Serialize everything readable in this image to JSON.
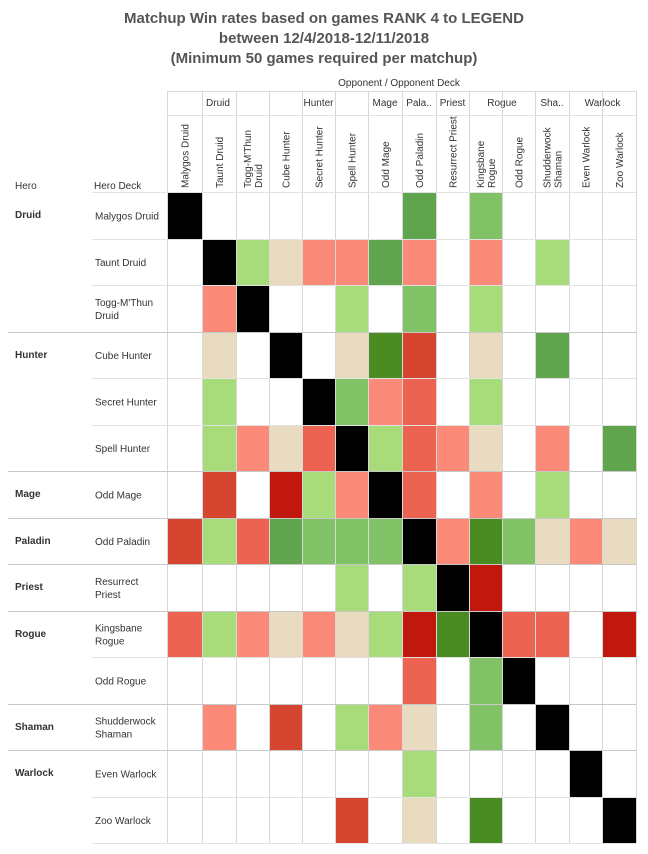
{
  "title": {
    "line1": "Matchup Win rates based on games RANK 4 to LEGEND",
    "line2": "between 12/4/2018-12/11/2018",
    "line3": "(Minimum 50 games required per matchup)"
  },
  "chart_data": {
    "type": "heatmap",
    "column_header": "Opponent  /  Opponent Deck",
    "row_headers": {
      "hero": "Hero",
      "deck": "Hero Deck"
    },
    "column_groups": [
      {
        "label": "Druid",
        "span": 3
      },
      {
        "label": "Hunter",
        "span": 3
      },
      {
        "label": "Mage",
        "span": 1
      },
      {
        "label": "Pala..",
        "span": 1
      },
      {
        "label": "Priest",
        "span": 1
      },
      {
        "label": "Rogue",
        "span": 2
      },
      {
        "label": "Sha..",
        "span": 1
      },
      {
        "label": "Warlock",
        "span": 2
      }
    ],
    "columns": [
      [
        "Malygos Druid"
      ],
      [
        "Taunt Druid"
      ],
      [
        "Togg-M'Thun",
        "Druid"
      ],
      [
        "Cube Hunter"
      ],
      [
        "Secret Hunter"
      ],
      [
        "Spell Hunter"
      ],
      [
        "Odd Mage"
      ],
      [
        "Odd Paladin"
      ],
      [
        "Resurrect Priest"
      ],
      [
        "Kingsbane",
        "Rogue"
      ],
      [
        "Odd Rogue"
      ],
      [
        "Shudderwock",
        "Shaman"
      ],
      [
        "Even Warlock"
      ],
      [
        "Zoo Warlock"
      ]
    ],
    "row_groups": [
      {
        "label": "Druid",
        "span": 3
      },
      {
        "label": "Hunter",
        "span": 3
      },
      {
        "label": "Mage",
        "span": 1
      },
      {
        "label": "Paladin",
        "span": 1
      },
      {
        "label": "Priest",
        "span": 1
      },
      {
        "label": "Rogue",
        "span": 2
      },
      {
        "label": "Shaman",
        "span": 1
      },
      {
        "label": "Warlock",
        "span": 2
      }
    ],
    "rows": [
      [
        "Malygos Druid"
      ],
      [
        "Taunt Druid"
      ],
      [
        "Togg-M'Thun",
        "Druid"
      ],
      [
        "Cube Hunter"
      ],
      [
        "Secret Hunter"
      ],
      [
        "Spell Hunter"
      ],
      [
        "Odd Mage"
      ],
      [
        "Odd Paladin"
      ],
      [
        "Resurrect",
        "Priest"
      ],
      [
        "Kingsbane",
        "Rogue"
      ],
      [
        "Odd Rogue"
      ],
      [
        "Shudderwock",
        "Shaman"
      ],
      [
        "Even Warlock"
      ],
      [
        "Zoo Warlock"
      ]
    ],
    "color_scale": {
      "X": "#000000",
      "R3": "#c0180c",
      "R2": "#d64530",
      "R1": "#ec6451",
      "R0": "#fb8a78",
      "N": "#e8dbbf",
      "G0": "#a8dc7a",
      "G1": "#82c267",
      "G2": "#60a44e",
      "G3": "#4a8c22"
    },
    "cells": [
      [
        "X",
        "",
        "",
        "",
        "",
        "",
        "",
        "G2",
        "",
        "G1",
        "",
        "",
        "",
        ""
      ],
      [
        "",
        "X",
        "G0",
        "N",
        "R0",
        "R0",
        "G2",
        "R0",
        "",
        "R0",
        "",
        "G0",
        "",
        ""
      ],
      [
        "",
        "R0",
        "X",
        "",
        "",
        "G0",
        "",
        "G1",
        "",
        "G0",
        "",
        "",
        "",
        ""
      ],
      [
        "",
        "N",
        "",
        "X",
        "",
        "N",
        "G3",
        "R2",
        "",
        "N",
        "",
        "G2",
        "",
        ""
      ],
      [
        "",
        "G0",
        "",
        "",
        "X",
        "G1",
        "R0",
        "R1",
        "",
        "G0",
        "",
        "",
        "",
        ""
      ],
      [
        "",
        "G0",
        "R0",
        "N",
        "R1",
        "X",
        "G0",
        "R1",
        "R0",
        "N",
        "",
        "R0",
        "",
        "G2"
      ],
      [
        "",
        "R2",
        "",
        "R3",
        "G0",
        "R0",
        "X",
        "R1",
        "",
        "R0",
        "",
        "G0",
        "",
        ""
      ],
      [
        "R2",
        "G0",
        "R1",
        "G2",
        "G1",
        "G1",
        "G1",
        "X",
        "R0",
        "G3",
        "G1",
        "N",
        "R0",
        "N"
      ],
      [
        "",
        "",
        "",
        "",
        "",
        "G0",
        "",
        "G0",
        "X",
        "R3",
        "",
        "",
        "",
        ""
      ],
      [
        "R1",
        "G0",
        "R0",
        "N",
        "R0",
        "N",
        "G0",
        "R3",
        "G3",
        "X",
        "R1",
        "R1",
        "",
        "R3"
      ],
      [
        "",
        "",
        "",
        "",
        "",
        "",
        "",
        "R1",
        "",
        "G1",
        "X",
        "",
        "",
        ""
      ],
      [
        "",
        "R0",
        "",
        "R2",
        "",
        "G0",
        "R0",
        "N",
        "",
        "G1",
        "",
        "X",
        "",
        ""
      ],
      [
        "",
        "",
        "",
        "",
        "",
        "",
        "",
        "G0",
        "",
        "",
        "",
        "",
        "X",
        ""
      ],
      [
        "",
        "",
        "",
        "",
        "",
        "R2",
        "",
        "N",
        "",
        "G3",
        "",
        "",
        "",
        "X"
      ]
    ]
  }
}
